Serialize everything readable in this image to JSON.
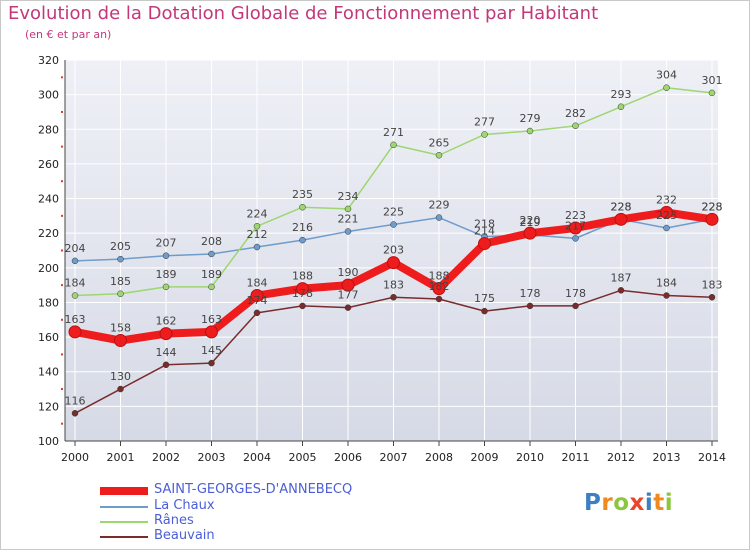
{
  "title": "Evolution de la Dotation Globale de Fonctionnement par Habitant",
  "subtitle": "(en € et par an)",
  "logo": {
    "letters": [
      "P",
      "r",
      "o",
      "x",
      "i",
      "t",
      "i"
    ],
    "colors": [
      "#3c7fc2",
      "#f08a1c",
      "#8cc63f",
      "#e8452c",
      "#3c7fc2",
      "#f08a1c",
      "#8cc63f"
    ]
  },
  "colors": {
    "axis": "#444444",
    "grid": "#ffffff",
    "background": "#ffffff",
    "tick_marker": "#d93a3a"
  },
  "chart_data": {
    "type": "line",
    "title": "Evolution de la Dotation Globale de Fonctionnement par Habitant",
    "subtitle": "(en € et par an)",
    "x": [
      "2000",
      "2001",
      "2002",
      "2003",
      "2004",
      "2005",
      "2006",
      "2007",
      "2008",
      "2009",
      "2010",
      "2011",
      "2012",
      "2013",
      "2014"
    ],
    "y_ticks": [
      "100",
      "120",
      "140",
      "160",
      "180",
      "200",
      "220",
      "240",
      "260",
      "280",
      "300",
      "320"
    ],
    "ylim": [
      100,
      320
    ],
    "legend_position": "bottom-left",
    "series": [
      {
        "name": "SAINT-GEORGES-D'ANNEBECQ",
        "color": "#ee1c1c",
        "emphasis": true,
        "values": [
          163,
          158,
          162,
          163,
          184,
          188,
          190,
          203,
          188,
          214,
          220,
          223,
          228,
          232,
          228
        ],
        "labels": [
          "163",
          "158",
          "162",
          "163",
          "184",
          "188",
          "190",
          "203",
          "188",
          "214",
          "220",
          "223",
          "228",
          "232",
          "228"
        ]
      },
      {
        "name": "La Chaux",
        "color": "#6e9ccc",
        "emphasis": false,
        "values": [
          204,
          205,
          207,
          208,
          212,
          216,
          221,
          225,
          229,
          218,
          219,
          217,
          228,
          223,
          228
        ],
        "labels": [
          "204",
          "205",
          "207",
          "208",
          "212",
          "216",
          "221",
          "225",
          "229",
          "218",
          "219",
          "217",
          "228",
          "223",
          "228"
        ]
      },
      {
        "name": "Rânes",
        "color": "#9ed66f",
        "emphasis": false,
        "values": [
          184,
          185,
          189,
          189,
          224,
          235,
          234,
          271,
          265,
          277,
          279,
          282,
          293,
          304,
          301
        ],
        "labels": [
          "184",
          "185",
          "189",
          "189",
          "224",
          "235",
          "234",
          "271",
          "265",
          "277",
          "279",
          "282",
          "293",
          "304",
          "301"
        ]
      },
      {
        "name": "Beauvain",
        "color": "#7a2c2c",
        "emphasis": false,
        "values": [
          116,
          130,
          144,
          145,
          174,
          178,
          177,
          183,
          182,
          175,
          178,
          178,
          187,
          184,
          183
        ],
        "labels": [
          "116",
          "130",
          "144",
          "145",
          "174",
          "178",
          "177",
          "183",
          "182",
          "175",
          "178",
          "178",
          "187",
          "184",
          "183"
        ]
      }
    ]
  }
}
